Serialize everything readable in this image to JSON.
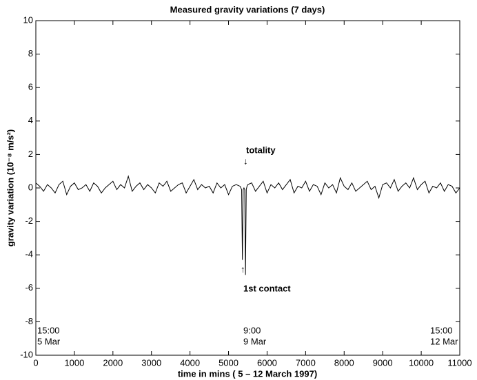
{
  "chart_data": {
    "type": "line",
    "title": "Measured gravity variations (7 days)",
    "x_label": "time in mins ( 5 – 12 March 1997)",
    "y_label": "gravity variation (10⁻⁸ m/s²)",
    "xlim": [
      0,
      11000
    ],
    "ylim": [
      -10,
      10
    ],
    "xticks": [
      0,
      1000,
      2000,
      3000,
      4000,
      5000,
      6000,
      7000,
      8000,
      9000,
      10000,
      11000
    ],
    "yticks": [
      -10,
      -8,
      -6,
      -4,
      -2,
      0,
      2,
      4,
      6,
      8,
      10
    ],
    "annotations": [
      "totality",
      "↓",
      "↑",
      "1st contact",
      "15:00",
      "5 Mar",
      "9:00",
      "9 Mar",
      "15:00",
      "12 Mar"
    ],
    "series": [
      {
        "color": "#000000",
        "x": [
          0,
          100,
          200,
          300,
          400,
          500,
          600,
          700,
          800,
          900,
          1000,
          1100,
          1200,
          1300,
          1400,
          1500,
          1600,
          1700,
          1800,
          1900,
          2000,
          2100,
          2200,
          2300,
          2400,
          2500,
          2600,
          2700,
          2800,
          2900,
          3000,
          3100,
          3200,
          3300,
          3400,
          3500,
          3600,
          3700,
          3800,
          3900,
          4000,
          4100,
          4200,
          4300,
          4400,
          4500,
          4600,
          4700,
          4800,
          4900,
          5000,
          5100,
          5200,
          5300,
          5320,
          5340,
          5360,
          5380,
          5400,
          5420,
          5440,
          5460,
          5480,
          5500,
          5600,
          5700,
          5800,
          5900,
          6000,
          6100,
          6200,
          6300,
          6400,
          6500,
          6600,
          6700,
          6800,
          6900,
          7000,
          7100,
          7200,
          7300,
          7400,
          7500,
          7600,
          7700,
          7800,
          7900,
          8000,
          8100,
          8200,
          8300,
          8400,
          8500,
          8600,
          8700,
          8800,
          8900,
          9000,
          9100,
          9200,
          9300,
          9400,
          9500,
          9600,
          9700,
          9800,
          9900,
          10000,
          10100,
          10200,
          10300,
          10400,
          10500,
          10600,
          10700,
          10800,
          10900,
          11000
        ],
        "values": [
          0.3,
          0.1,
          -0.2,
          0.2,
          0.0,
          -0.3,
          0.2,
          0.4,
          -0.4,
          0.1,
          0.3,
          -0.1,
          0.0,
          0.2,
          -0.2,
          0.3,
          0.1,
          -0.3,
          0.0,
          0.2,
          0.4,
          -0.1,
          0.2,
          0.0,
          0.7,
          -0.2,
          0.1,
          0.3,
          -0.1,
          0.2,
          0.0,
          -0.3,
          0.3,
          0.1,
          0.4,
          -0.2,
          0.0,
          0.2,
          0.3,
          -0.3,
          0.1,
          0.5,
          -0.1,
          0.2,
          0.0,
          0.1,
          -0.3,
          0.3,
          0.0,
          0.2,
          -0.4,
          0.1,
          0.2,
          0.1,
          0.0,
          -0.1,
          -4.3,
          -0.1,
          0.0,
          -0.1,
          -5.2,
          -0.1,
          0.1,
          0.2,
          0.3,
          -0.2,
          0.1,
          0.4,
          -0.3,
          0.2,
          0.0,
          0.3,
          -0.1,
          0.2,
          0.5,
          -0.3,
          0.1,
          0.0,
          0.4,
          -0.2,
          0.2,
          0.1,
          -0.4,
          0.3,
          0.0,
          0.2,
          -0.3,
          0.6,
          0.1,
          -0.1,
          0.3,
          -0.2,
          0.0,
          0.2,
          0.4,
          -0.1,
          0.1,
          -0.6,
          0.2,
          0.3,
          0.0,
          0.5,
          -0.2,
          0.1,
          0.3,
          0.0,
          0.6,
          -0.1,
          0.2,
          0.4,
          -0.3,
          0.1,
          0.0,
          0.3,
          -0.2,
          0.2,
          0.1,
          -0.3,
          0.0
        ]
      }
    ]
  }
}
